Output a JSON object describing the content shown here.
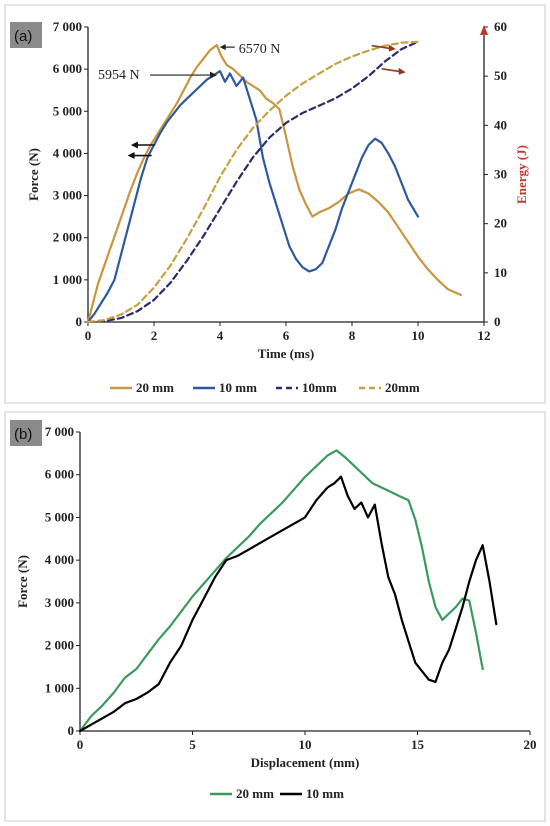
{
  "chart_data": [
    {
      "panel": "(a)",
      "type": "line",
      "title": "",
      "xlabel": "Time (ms)",
      "ylabel": "Force (N)",
      "ylabel_right": "Energy (J)",
      "xlim": [
        0,
        12
      ],
      "ylim": [
        0,
        7000
      ],
      "ylim_right": [
        0,
        60
      ],
      "x_ticks": [
        0,
        2,
        4,
        6,
        8,
        10,
        12
      ],
      "y_ticks": [
        0,
        1000,
        2000,
        3000,
        4000,
        5000,
        6000,
        7000
      ],
      "y_tick_labels": [
        "0",
        "1 000",
        "2 000",
        "3 000",
        "4 000",
        "5 000",
        "6 000",
        "7 000"
      ],
      "y_right_ticks": [
        0,
        10,
        20,
        30,
        40,
        50,
        60
      ],
      "grid": false,
      "legend": "bottom",
      "annotations": [
        {
          "text": "6570 N",
          "x": 3.9,
          "y": 6570
        },
        {
          "text": "5954 N",
          "x": 4.0,
          "y": 5954
        }
      ],
      "colors": {
        "20mm": "#c8963e",
        "10mm": "#2e5a9c",
        "10mm_energy": "#2d2a6e",
        "20mm_energy": "#c8a040",
        "energy_axis": "#c0392b"
      },
      "series": [
        {
          "name": "20 mm",
          "axis": "left",
          "style": "solid",
          "color": "#c8963e",
          "x": [
            0,
            0.15,
            0.3,
            0.5,
            0.7,
            0.9,
            1.1,
            1.3,
            1.5,
            1.7,
            1.9,
            2.1,
            2.3,
            2.5,
            2.7,
            2.9,
            3.1,
            3.3,
            3.5,
            3.7,
            3.9,
            4.05,
            4.2,
            4.4,
            4.6,
            4.8,
            5.0,
            5.2,
            5.4,
            5.6,
            5.8,
            6.0,
            6.2,
            6.4,
            6.6,
            6.8,
            7.0,
            7.3,
            7.6,
            7.9,
            8.2,
            8.5,
            8.8,
            9.1,
            9.4,
            9.7,
            10.0,
            10.3,
            10.6,
            10.9,
            11.3
          ],
          "y": [
            0,
            450,
            900,
            1350,
            1800,
            2250,
            2700,
            3150,
            3550,
            3900,
            4200,
            4450,
            4700,
            4950,
            5200,
            5500,
            5800,
            6050,
            6250,
            6450,
            6570,
            6300,
            6100,
            6000,
            5850,
            5700,
            5600,
            5500,
            5300,
            5200,
            5050,
            4400,
            3700,
            3150,
            2800,
            2500,
            2600,
            2700,
            2850,
            3050,
            3150,
            3050,
            2850,
            2600,
            2250,
            1900,
            1550,
            1250,
            1000,
            780,
            640
          ]
        },
        {
          "name": "10 mm",
          "axis": "left",
          "style": "solid",
          "color": "#2e5a9c",
          "x": [
            0,
            0.2,
            0.4,
            0.6,
            0.8,
            1.0,
            1.2,
            1.4,
            1.6,
            1.8,
            2.0,
            2.2,
            2.4,
            2.6,
            2.8,
            3.0,
            3.2,
            3.4,
            3.6,
            3.8,
            4.0,
            4.15,
            4.3,
            4.5,
            4.7,
            4.9,
            5.1,
            5.3,
            5.5,
            5.7,
            5.9,
            6.1,
            6.3,
            6.5,
            6.7,
            6.9,
            7.1,
            7.3,
            7.5,
            7.7,
            7.9,
            8.1,
            8.3,
            8.5,
            8.7,
            8.9,
            9.1,
            9.3,
            9.5,
            9.7,
            10.0
          ],
          "y": [
            0,
            200,
            450,
            700,
            1000,
            1600,
            2200,
            2800,
            3400,
            3900,
            4200,
            4500,
            4750,
            4950,
            5150,
            5300,
            5450,
            5600,
            5750,
            5850,
            5954,
            5700,
            5900,
            5600,
            5800,
            5300,
            4800,
            3900,
            3300,
            2800,
            2300,
            1800,
            1500,
            1300,
            1200,
            1250,
            1400,
            1800,
            2200,
            2700,
            3100,
            3500,
            3900,
            4200,
            4350,
            4250,
            4000,
            3700,
            3300,
            2900,
            2500
          ]
        },
        {
          "name": "10mm",
          "axis": "right",
          "style": "dashed",
          "color": "#2d2a6e",
          "x": [
            0,
            0.5,
            1.0,
            1.5,
            2.0,
            2.5,
            3.0,
            3.5,
            4.0,
            4.5,
            5.0,
            5.5,
            6.0,
            6.5,
            7.0,
            7.5,
            8.0,
            8.5,
            9.0,
            9.5,
            10.0
          ],
          "y": [
            0,
            0.2,
            0.8,
            2.2,
            4.5,
            8.0,
            12.5,
            17.5,
            23.0,
            28.5,
            33.5,
            37.5,
            40.5,
            42.5,
            44.0,
            45.5,
            47.5,
            50.0,
            53.0,
            55.5,
            57.0
          ]
        },
        {
          "name": "20mm",
          "axis": "right",
          "style": "dashed",
          "color": "#c8a040",
          "x": [
            0,
            0.5,
            1.0,
            1.5,
            2.0,
            2.5,
            3.0,
            3.5,
            4.0,
            4.5,
            5.0,
            5.5,
            6.0,
            6.5,
            7.0,
            7.5,
            8.0,
            8.5,
            9.0,
            9.5,
            10.0
          ],
          "y": [
            0,
            0.4,
            1.5,
            3.5,
            7.0,
            11.5,
            17.0,
            23.0,
            29.5,
            35.0,
            39.5,
            43.0,
            46.0,
            48.5,
            50.5,
            52.5,
            54.0,
            55.2,
            56.2,
            56.8,
            57.0
          ]
        }
      ]
    },
    {
      "panel": "(b)",
      "type": "line",
      "title": "",
      "xlabel": "Displacement (mm)",
      "ylabel": "Force (N)",
      "xlim": [
        0,
        20
      ],
      "ylim": [
        0,
        7000
      ],
      "x_ticks": [
        0,
        5,
        10,
        15,
        20
      ],
      "y_ticks": [
        0,
        1000,
        2000,
        3000,
        4000,
        5000,
        6000,
        7000
      ],
      "y_tick_labels": [
        "0",
        "1 000",
        "2 000",
        "3 000",
        "4 000",
        "5 000",
        "6 000",
        "7 000"
      ],
      "grid": false,
      "legend": "bottom",
      "colors": {
        "20mm": "#3a9a5c",
        "10mm": "#000000"
      },
      "series": [
        {
          "name": "20 mm",
          "style": "solid",
          "color": "#3a9a5c",
          "x": [
            0,
            0.5,
            1.0,
            1.5,
            2.0,
            2.5,
            3.0,
            3.5,
            4.0,
            4.5,
            5.0,
            5.5,
            6.0,
            6.5,
            7.0,
            7.5,
            8.0,
            8.5,
            9.0,
            9.5,
            10.0,
            10.5,
            11.0,
            11.4,
            11.8,
            12.2,
            12.6,
            13.0,
            13.4,
            13.8,
            14.2,
            14.6,
            14.9,
            15.2,
            15.5,
            15.8,
            16.1,
            16.4,
            16.7,
            17.0,
            17.3,
            17.6,
            17.9
          ],
          "y": [
            0,
            350,
            600,
            900,
            1250,
            1450,
            1800,
            2150,
            2450,
            2800,
            3150,
            3450,
            3750,
            4050,
            4300,
            4550,
            4850,
            5100,
            5350,
            5650,
            5950,
            6200,
            6450,
            6570,
            6400,
            6200,
            6000,
            5800,
            5700,
            5600,
            5500,
            5400,
            4950,
            4300,
            3500,
            2900,
            2600,
            2750,
            2900,
            3100,
            3050,
            2300,
            1450
          ]
        },
        {
          "name": "10 mm",
          "style": "solid",
          "color": "#000000",
          "x": [
            0,
            0.5,
            1.0,
            1.5,
            2.0,
            2.5,
            3.0,
            3.5,
            4.0,
            4.5,
            5.0,
            5.5,
            6.0,
            6.5,
            7.0,
            7.5,
            8.0,
            8.5,
            9.0,
            9.5,
            10.0,
            10.5,
            11.0,
            11.3,
            11.6,
            11.9,
            12.2,
            12.5,
            12.8,
            13.1,
            13.4,
            13.7,
            14.0,
            14.3,
            14.6,
            14.9,
            15.2,
            15.5,
            15.8,
            16.1,
            16.4,
            16.7,
            17.0,
            17.3,
            17.6,
            17.9,
            18.2,
            18.5
          ],
          "y": [
            0,
            150,
            300,
            450,
            650,
            750,
            900,
            1100,
            1600,
            2000,
            2600,
            3100,
            3600,
            4000,
            4100,
            4250,
            4400,
            4550,
            4700,
            4850,
            5000,
            5400,
            5700,
            5800,
            5954,
            5500,
            5200,
            5350,
            5000,
            5300,
            4400,
            3600,
            3200,
            2600,
            2100,
            1600,
            1400,
            1200,
            1150,
            1600,
            1900,
            2400,
            2900,
            3500,
            4000,
            4350,
            3500,
            2500
          ]
        }
      ]
    }
  ]
}
